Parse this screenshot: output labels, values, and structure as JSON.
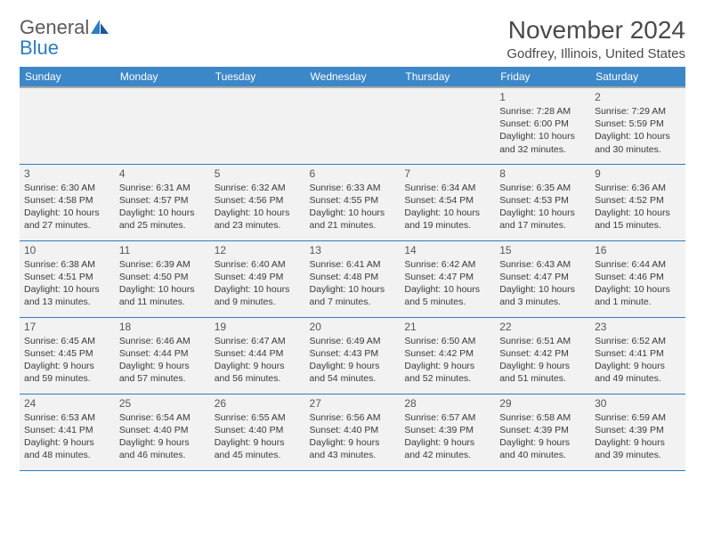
{
  "logo": {
    "part1": "General",
    "part2": "Blue"
  },
  "title": "November 2024",
  "location": "Godfrey, Illinois, United States",
  "columns": [
    "Sunday",
    "Monday",
    "Tuesday",
    "Wednesday",
    "Thursday",
    "Friday",
    "Saturday"
  ],
  "colors": {
    "header_bg": "#3b87c8",
    "header_text": "#ffffff",
    "cell_bg": "#f2f2f2",
    "border": "#2d7dc1",
    "text": "#3a3a3a"
  },
  "weeks": [
    [
      null,
      null,
      null,
      null,
      null,
      {
        "day": "1",
        "sunrise": "Sunrise: 7:28 AM",
        "sunset": "Sunset: 6:00 PM",
        "daylight": "Daylight: 10 hours and 32 minutes."
      },
      {
        "day": "2",
        "sunrise": "Sunrise: 7:29 AM",
        "sunset": "Sunset: 5:59 PM",
        "daylight": "Daylight: 10 hours and 30 minutes."
      }
    ],
    [
      {
        "day": "3",
        "sunrise": "Sunrise: 6:30 AM",
        "sunset": "Sunset: 4:58 PM",
        "daylight": "Daylight: 10 hours and 27 minutes."
      },
      {
        "day": "4",
        "sunrise": "Sunrise: 6:31 AM",
        "sunset": "Sunset: 4:57 PM",
        "daylight": "Daylight: 10 hours and 25 minutes."
      },
      {
        "day": "5",
        "sunrise": "Sunrise: 6:32 AM",
        "sunset": "Sunset: 4:56 PM",
        "daylight": "Daylight: 10 hours and 23 minutes."
      },
      {
        "day": "6",
        "sunrise": "Sunrise: 6:33 AM",
        "sunset": "Sunset: 4:55 PM",
        "daylight": "Daylight: 10 hours and 21 minutes."
      },
      {
        "day": "7",
        "sunrise": "Sunrise: 6:34 AM",
        "sunset": "Sunset: 4:54 PM",
        "daylight": "Daylight: 10 hours and 19 minutes."
      },
      {
        "day": "8",
        "sunrise": "Sunrise: 6:35 AM",
        "sunset": "Sunset: 4:53 PM",
        "daylight": "Daylight: 10 hours and 17 minutes."
      },
      {
        "day": "9",
        "sunrise": "Sunrise: 6:36 AM",
        "sunset": "Sunset: 4:52 PM",
        "daylight": "Daylight: 10 hours and 15 minutes."
      }
    ],
    [
      {
        "day": "10",
        "sunrise": "Sunrise: 6:38 AM",
        "sunset": "Sunset: 4:51 PM",
        "daylight": "Daylight: 10 hours and 13 minutes."
      },
      {
        "day": "11",
        "sunrise": "Sunrise: 6:39 AM",
        "sunset": "Sunset: 4:50 PM",
        "daylight": "Daylight: 10 hours and 11 minutes."
      },
      {
        "day": "12",
        "sunrise": "Sunrise: 6:40 AM",
        "sunset": "Sunset: 4:49 PM",
        "daylight": "Daylight: 10 hours and 9 minutes."
      },
      {
        "day": "13",
        "sunrise": "Sunrise: 6:41 AM",
        "sunset": "Sunset: 4:48 PM",
        "daylight": "Daylight: 10 hours and 7 minutes."
      },
      {
        "day": "14",
        "sunrise": "Sunrise: 6:42 AM",
        "sunset": "Sunset: 4:47 PM",
        "daylight": "Daylight: 10 hours and 5 minutes."
      },
      {
        "day": "15",
        "sunrise": "Sunrise: 6:43 AM",
        "sunset": "Sunset: 4:47 PM",
        "daylight": "Daylight: 10 hours and 3 minutes."
      },
      {
        "day": "16",
        "sunrise": "Sunrise: 6:44 AM",
        "sunset": "Sunset: 4:46 PM",
        "daylight": "Daylight: 10 hours and 1 minute."
      }
    ],
    [
      {
        "day": "17",
        "sunrise": "Sunrise: 6:45 AM",
        "sunset": "Sunset: 4:45 PM",
        "daylight": "Daylight: 9 hours and 59 minutes."
      },
      {
        "day": "18",
        "sunrise": "Sunrise: 6:46 AM",
        "sunset": "Sunset: 4:44 PM",
        "daylight": "Daylight: 9 hours and 57 minutes."
      },
      {
        "day": "19",
        "sunrise": "Sunrise: 6:47 AM",
        "sunset": "Sunset: 4:44 PM",
        "daylight": "Daylight: 9 hours and 56 minutes."
      },
      {
        "day": "20",
        "sunrise": "Sunrise: 6:49 AM",
        "sunset": "Sunset: 4:43 PM",
        "daylight": "Daylight: 9 hours and 54 minutes."
      },
      {
        "day": "21",
        "sunrise": "Sunrise: 6:50 AM",
        "sunset": "Sunset: 4:42 PM",
        "daylight": "Daylight: 9 hours and 52 minutes."
      },
      {
        "day": "22",
        "sunrise": "Sunrise: 6:51 AM",
        "sunset": "Sunset: 4:42 PM",
        "daylight": "Daylight: 9 hours and 51 minutes."
      },
      {
        "day": "23",
        "sunrise": "Sunrise: 6:52 AM",
        "sunset": "Sunset: 4:41 PM",
        "daylight": "Daylight: 9 hours and 49 minutes."
      }
    ],
    [
      {
        "day": "24",
        "sunrise": "Sunrise: 6:53 AM",
        "sunset": "Sunset: 4:41 PM",
        "daylight": "Daylight: 9 hours and 48 minutes."
      },
      {
        "day": "25",
        "sunrise": "Sunrise: 6:54 AM",
        "sunset": "Sunset: 4:40 PM",
        "daylight": "Daylight: 9 hours and 46 minutes."
      },
      {
        "day": "26",
        "sunrise": "Sunrise: 6:55 AM",
        "sunset": "Sunset: 4:40 PM",
        "daylight": "Daylight: 9 hours and 45 minutes."
      },
      {
        "day": "27",
        "sunrise": "Sunrise: 6:56 AM",
        "sunset": "Sunset: 4:40 PM",
        "daylight": "Daylight: 9 hours and 43 minutes."
      },
      {
        "day": "28",
        "sunrise": "Sunrise: 6:57 AM",
        "sunset": "Sunset: 4:39 PM",
        "daylight": "Daylight: 9 hours and 42 minutes."
      },
      {
        "day": "29",
        "sunrise": "Sunrise: 6:58 AM",
        "sunset": "Sunset: 4:39 PM",
        "daylight": "Daylight: 9 hours and 40 minutes."
      },
      {
        "day": "30",
        "sunrise": "Sunrise: 6:59 AM",
        "sunset": "Sunset: 4:39 PM",
        "daylight": "Daylight: 9 hours and 39 minutes."
      }
    ]
  ]
}
